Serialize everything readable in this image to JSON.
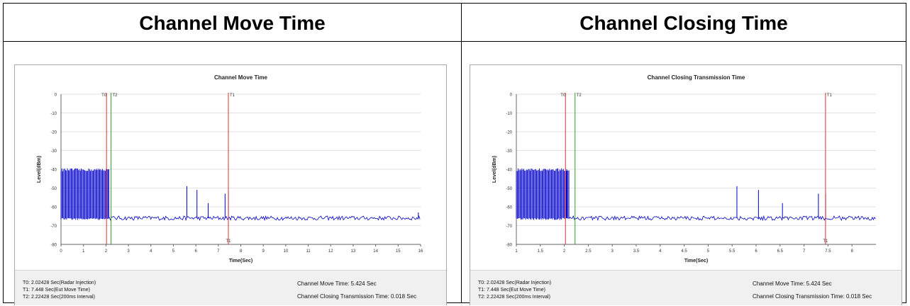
{
  "panels": [
    {
      "header": "Channel Move Time",
      "chart_data": {
        "type": "line",
        "title": "Channel Move Time",
        "xlabel": "Time(Sec)",
        "ylabel": "Level(dBm)",
        "xlim": [
          0,
          16
        ],
        "ylim": [
          -80,
          0
        ],
        "xticks": [
          0,
          1,
          2,
          3,
          4,
          5,
          6,
          7,
          8,
          9,
          10,
          11,
          12,
          13,
          14,
          15,
          16
        ],
        "yticks": [
          0,
          -10,
          -20,
          -30,
          -40,
          -50,
          -60,
          -70,
          -80
        ],
        "grid": "horizontal",
        "series_color": "#0000c8",
        "noise_floor_dbm": -66,
        "burst": {
          "x_start": 0,
          "x_end": 2.15,
          "high_dbm": -41,
          "low_dbm": -66
        },
        "spikes": [
          {
            "x": 2.05,
            "y": -40
          },
          {
            "x": 5.6,
            "y": -49
          },
          {
            "x": 6.05,
            "y": -51
          },
          {
            "x": 6.55,
            "y": -58
          },
          {
            "x": 7.3,
            "y": -53
          },
          {
            "x": 7.45,
            "y": -52
          },
          {
            "x": 15.9,
            "y": -63
          }
        ],
        "markers": [
          {
            "label": "T0",
            "x": 2.02428,
            "color": "#e03030"
          },
          {
            "label": "T2",
            "x": 2.22428,
            "color": "#30a030"
          },
          {
            "label": "T1",
            "x": 7.448,
            "color": "#e03030"
          }
        ],
        "bottom_marker_label": "T1"
      },
      "footer": {
        "t0": "T0: 2.02428 Sec(Radar Injection)",
        "t1": "T1: 7.448 Sec(Eut Move Time)",
        "t2": "T2: 2.22428 Sec(200ms Interval)",
        "move_time": "Channel Move Time: 5.424 Sec",
        "closing_time": "Channel Closing Transmission Time: 0.018 Sec"
      }
    },
    {
      "header": "Channel Closing Time",
      "chart_data": {
        "type": "line",
        "title": "Channel Closing Transmission Time",
        "xlabel": "Time(Sec)",
        "ylabel": "Level(dBm)",
        "xlim": [
          1,
          8.5
        ],
        "ylim": [
          -80,
          0
        ],
        "xticks": [
          1,
          1.5,
          2,
          2.5,
          3,
          3.5,
          4,
          4.5,
          5,
          5.5,
          6,
          6.5,
          7,
          7.5,
          8
        ],
        "yticks": [
          0,
          -10,
          -20,
          -30,
          -40,
          -50,
          -60,
          -70,
          -80
        ],
        "grid": "horizontal",
        "series_color": "#0000c8",
        "noise_floor_dbm": -66,
        "burst": {
          "x_start": 1,
          "x_end": 2.1,
          "high_dbm": -41,
          "low_dbm": -66
        },
        "spikes": [
          {
            "x": 2.05,
            "y": -40
          },
          {
            "x": 5.6,
            "y": -49
          },
          {
            "x": 6.05,
            "y": -51
          },
          {
            "x": 6.55,
            "y": -58
          },
          {
            "x": 7.3,
            "y": -53
          },
          {
            "x": 7.45,
            "y": -53
          }
        ],
        "markers": [
          {
            "label": "T0",
            "x": 2.02428,
            "color": "#e03030"
          },
          {
            "label": "T2",
            "x": 2.22428,
            "color": "#30a030"
          },
          {
            "label": "T1",
            "x": 7.448,
            "color": "#e03030"
          }
        ],
        "bottom_marker_label": "T1"
      },
      "footer": {
        "t0": "T0: 2.02428 Sec(Radar Injection)",
        "t1": "T1: 7.448 Sec(Eut Move Time)",
        "t2": "T2: 2.22428 Sec(200ms Interval)",
        "move_time": "Channel Move Time: 5.424 Sec",
        "closing_time": "Channel Closing Transmission Time: 0.018 Sec"
      }
    }
  ]
}
